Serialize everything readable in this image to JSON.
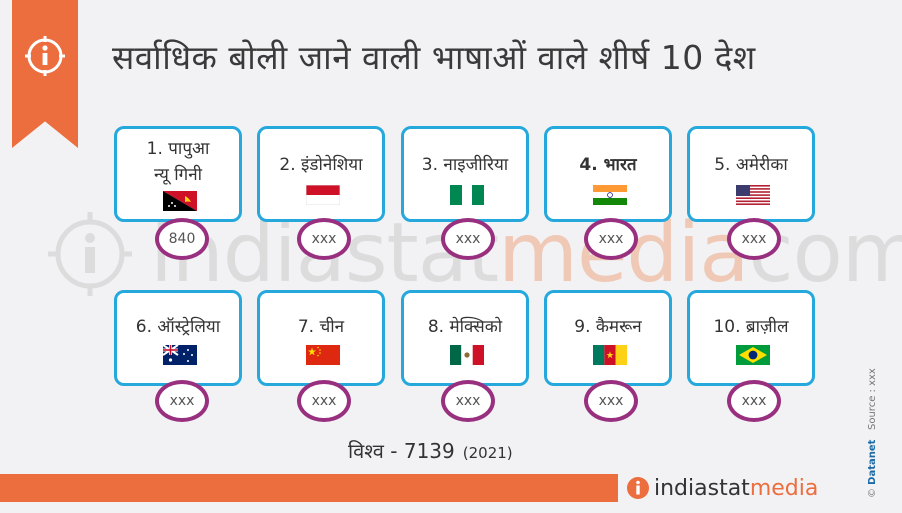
{
  "header": {
    "title": "सर्वाधिक बोली जाने वाली भाषाओं वाले शीर्ष 10 देश"
  },
  "watermark": {
    "text_a": "indiastat",
    "text_b": "media",
    "text_c": "com"
  },
  "cards": [
    {
      "label_1": "1. पापुआ",
      "label_2": "न्यू गिनी",
      "value": "840",
      "flag": "papua-new-guinea-flag",
      "bold": false
    },
    {
      "label_1": "2. इंडोनेशिया",
      "label_2": "",
      "value": "xxx",
      "flag": "indonesia-flag",
      "bold": false
    },
    {
      "label_1": "3. नाइजीरिया",
      "label_2": "",
      "value": "xxx",
      "flag": "nigeria-flag",
      "bold": false
    },
    {
      "label_1": "4. भारत",
      "label_2": "",
      "value": "xxx",
      "flag": "india-flag",
      "bold": true
    },
    {
      "label_1": "5. अमेरीका",
      "label_2": "",
      "value": "xxx",
      "flag": "usa-flag",
      "bold": false
    },
    {
      "label_1": "6. ऑस्ट्रेलिया",
      "label_2": "",
      "value": "xxx",
      "flag": "australia-flag",
      "bold": false
    },
    {
      "label_1": "7. चीन",
      "label_2": "",
      "value": "xxx",
      "flag": "china-flag",
      "bold": false
    },
    {
      "label_1": "8. मेक्सिको",
      "label_2": "",
      "value": "xxx",
      "flag": "mexico-flag",
      "bold": false
    },
    {
      "label_1": "9. कैमरून",
      "label_2": "",
      "value": "xxx",
      "flag": "cameroon-flag",
      "bold": false
    },
    {
      "label_1": "10. ब्राज़ील",
      "label_2": "",
      "value": "xxx",
      "flag": "brazil-flag",
      "bold": false
    }
  ],
  "footer": {
    "world_label": "विश्व - 7139",
    "year": "(2021)",
    "brand_a": "indiastat",
    "brand_b": "media",
    "copyright": "©",
    "datanet": "Datanet",
    "source": "Source : xxx"
  },
  "colors": {
    "accent": "#ec6d3e",
    "card_border": "#25a9dd",
    "badge_border": "#98307f"
  }
}
